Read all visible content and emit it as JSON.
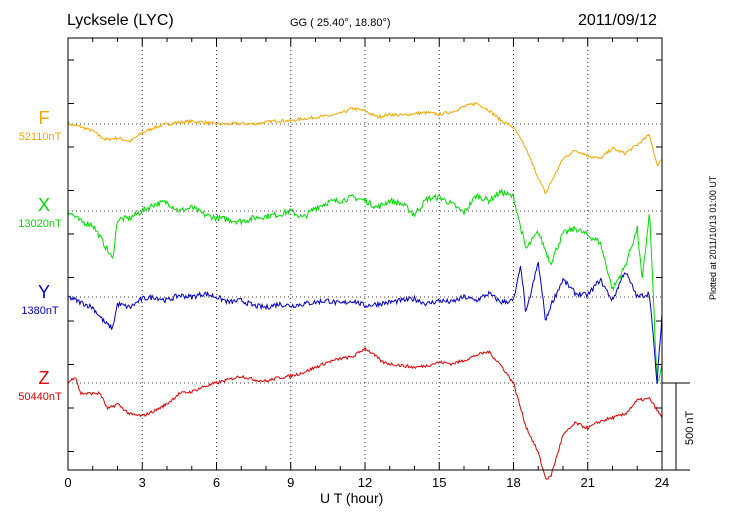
{
  "header": {
    "station": "Lycksele (LYC)",
    "coords": "GG ( 25.40°,  18.80°)",
    "date": "2011/09/12"
  },
  "channels": [
    {
      "letter": "F",
      "baseline": "52110nT",
      "color": "#f0a800"
    },
    {
      "letter": "X",
      "baseline": "13020nT",
      "color": "#00dd00"
    },
    {
      "letter": "Y",
      "baseline": "1380nT",
      "color": "#0000cc"
    },
    {
      "letter": "Z",
      "baseline": "50440nT",
      "color": "#e00000"
    }
  ],
  "scale_bar": {
    "label": "500 nT"
  },
  "footer": {
    "plotted": "Plotted at 2011/10/13 01:00 UT"
  },
  "chart_data": {
    "type": "line",
    "title": "Lycksele (LYC)",
    "xlabel": "U T (hour)",
    "ylabel": "",
    "xlim": [
      0,
      24
    ],
    "xticks": [
      0,
      3,
      6,
      9,
      12,
      15,
      18,
      21,
      24
    ],
    "grid": true,
    "series": [
      {
        "name": "F",
        "baseline_label": "52110nT",
        "x": [
          0,
          0.5,
          1,
          1.5,
          2,
          2.5,
          3,
          3.5,
          4,
          4.5,
          5,
          5.5,
          6,
          6.5,
          7,
          7.5,
          8,
          8.5,
          9,
          9.5,
          10,
          10.5,
          11,
          11.5,
          12,
          12.5,
          13,
          13.5,
          14,
          14.5,
          15,
          15.5,
          16,
          16.5,
          17,
          17.5,
          18,
          18.5,
          19,
          19.3,
          19.5,
          20,
          20.5,
          21,
          21.5,
          22,
          22.5,
          23,
          23.5,
          23.8,
          24
        ],
        "y": [
          0,
          -15,
          -40,
          -90,
          -80,
          -100,
          -50,
          -20,
          0,
          10,
          15,
          10,
          0,
          0,
          2,
          0,
          10,
          20,
          18,
          30,
          40,
          45,
          60,
          90,
          75,
          40,
          55,
          50,
          60,
          65,
          55,
          70,
          100,
          120,
          80,
          20,
          -20,
          -140,
          -310,
          -400,
          -340,
          -200,
          -150,
          -180,
          -200,
          -140,
          -170,
          -120,
          -60,
          -240,
          -200
        ]
      },
      {
        "name": "X",
        "baseline_label": "13020nT",
        "x": [
          0,
          0.5,
          1,
          1.5,
          1.8,
          2,
          2.5,
          3,
          3.5,
          4,
          4.5,
          5,
          5.5,
          6,
          6.5,
          7,
          7.5,
          8,
          8.5,
          9,
          9.5,
          10,
          10.5,
          11,
          11.5,
          12,
          12.5,
          13,
          13.5,
          14,
          14.5,
          15,
          15.5,
          16,
          16.5,
          17,
          17.5,
          18,
          18.5,
          19,
          19.5,
          20,
          20.5,
          21,
          21.5,
          22,
          22.5,
          23,
          23.2,
          23.5,
          23.8,
          24
        ],
        "y": [
          0,
          -60,
          -80,
          -200,
          -280,
          -50,
          -40,
          0,
          40,
          50,
          0,
          20,
          -20,
          -40,
          -50,
          -60,
          -40,
          -30,
          -20,
          0,
          -40,
          20,
          50,
          60,
          80,
          60,
          20,
          60,
          40,
          -20,
          70,
          80,
          40,
          -10,
          90,
          60,
          110,
          80,
          -220,
          -120,
          -300,
          -130,
          -100,
          -140,
          -180,
          -450,
          -320,
          -100,
          -400,
          0,
          -1000,
          -900
        ]
      },
      {
        "name": "Y",
        "baseline_label": "1380nT",
        "x": [
          0,
          0.5,
          1,
          1.5,
          1.8,
          2,
          2.5,
          3,
          3.5,
          4,
          4.5,
          5,
          5.5,
          6,
          6.5,
          7,
          7.5,
          8,
          8.5,
          9,
          9.5,
          10,
          10.5,
          11,
          11.5,
          12,
          12.5,
          13,
          13.5,
          14,
          14.5,
          15,
          15.5,
          16,
          16.5,
          17,
          17.5,
          18,
          18.3,
          18.5,
          19,
          19.3,
          19.5,
          20,
          20.5,
          21,
          21.5,
          22,
          22.5,
          23,
          23.5,
          23.8,
          24
        ],
        "y": [
          0,
          -30,
          -60,
          -150,
          -180,
          -40,
          -60,
          -10,
          0,
          -20,
          10,
          0,
          20,
          0,
          -30,
          -20,
          -50,
          -60,
          -40,
          -50,
          -40,
          -30,
          -20,
          -40,
          -20,
          -50,
          -40,
          -30,
          -20,
          -10,
          -40,
          -20,
          -30,
          0,
          -20,
          20,
          -30,
          -20,
          180,
          -100,
          200,
          -140,
          -50,
          100,
          20,
          10,
          100,
          -20,
          150,
          0,
          20,
          -500,
          -100
        ]
      },
      {
        "name": "Z",
        "baseline_label": "50440nT",
        "x": [
          0,
          0.3,
          0.5,
          1,
          1.3,
          1.6,
          2,
          2.5,
          3,
          3.5,
          4,
          4.5,
          5,
          5.5,
          6,
          6.5,
          7,
          7.5,
          8,
          8.5,
          9,
          9.5,
          10,
          10.5,
          11,
          11.5,
          12,
          12.3,
          12.7,
          13,
          13.5,
          14,
          14.5,
          15,
          15.5,
          16,
          16.5,
          17,
          17.5,
          18,
          18.5,
          19,
          19.3,
          19.5,
          20,
          20.5,
          21,
          21.5,
          22,
          22.5,
          23,
          23.5,
          24
        ],
        "y": [
          0,
          40,
          -60,
          -60,
          -60,
          -150,
          -120,
          -180,
          -190,
          -160,
          -120,
          -60,
          -50,
          -20,
          0,
          20,
          40,
          20,
          10,
          30,
          40,
          60,
          90,
          120,
          140,
          150,
          200,
          170,
          120,
          110,
          100,
          90,
          100,
          120,
          110,
          130,
          160,
          180,
          100,
          0,
          -250,
          -400,
          -550,
          -540,
          -300,
          -230,
          -260,
          -220,
          -200,
          -180,
          -100,
          -90,
          -200
        ]
      }
    ]
  }
}
